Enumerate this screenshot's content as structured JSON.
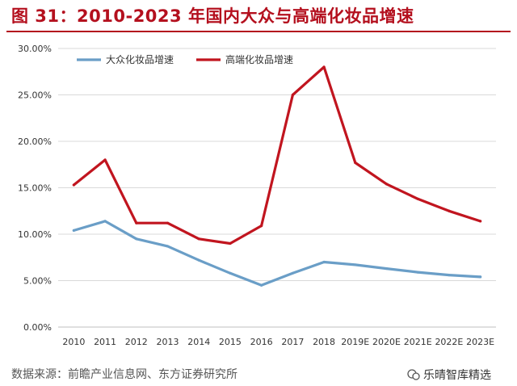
{
  "header": {
    "title": "图 31：2010-2023 年国内大众与高端化妆品增速"
  },
  "footer": {
    "source": "数据来源：前瞻产业信息网、东方证券研究所"
  },
  "watermark": {
    "text": "乐晴智库精选",
    "icon": "chat-bubble-icon"
  },
  "colors": {
    "title": "#b4101e",
    "mass": "#6a9ec7",
    "premium": "#c1151f",
    "grid": "#d9d9d9"
  },
  "chart_data": {
    "type": "line",
    "title": "",
    "xlabel": "",
    "ylabel": "",
    "categories": [
      "2010",
      "2011",
      "2012",
      "2013",
      "2014",
      "2015",
      "2016",
      "2017",
      "2018",
      "2019E",
      "2020E",
      "2021E",
      "2022E",
      "2023E"
    ],
    "yticks": [
      "0.00%",
      "5.00%",
      "10.00%",
      "15.00%",
      "20.00%",
      "25.00%",
      "30.00%"
    ],
    "ylim": [
      0,
      30
    ],
    "grid": true,
    "legend_position": "top-left",
    "series": [
      {
        "name": "大众化妆品增速",
        "color": "#6a9ec7",
        "values": [
          10.4,
          11.4,
          9.5,
          8.7,
          7.2,
          5.8,
          4.5,
          5.8,
          7.0,
          6.7,
          6.3,
          5.9,
          5.6,
          5.4
        ]
      },
      {
        "name": "高端化妆品增速",
        "color": "#c1151f",
        "values": [
          15.3,
          18.0,
          11.2,
          11.2,
          9.5,
          9.0,
          10.9,
          25.0,
          28.0,
          17.7,
          15.4,
          13.8,
          12.5,
          11.4
        ]
      }
    ]
  }
}
